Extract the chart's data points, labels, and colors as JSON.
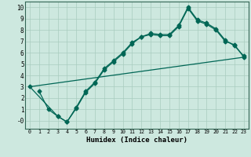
{
  "xlabel": "Humidex (Indice chaleur)",
  "bg_color": "#cde8df",
  "grid_color": "#a8ccbf",
  "line_color": "#006655",
  "xlim": [
    -0.5,
    23.5
  ],
  "ylim": [
    -0.7,
    10.5
  ],
  "xticks": [
    0,
    1,
    2,
    3,
    4,
    5,
    6,
    7,
    8,
    9,
    10,
    11,
    12,
    13,
    14,
    15,
    16,
    17,
    18,
    19,
    20,
    21,
    22,
    23
  ],
  "yticks": [
    0,
    1,
    2,
    3,
    4,
    5,
    6,
    7,
    8,
    9,
    10
  ],
  "ytick_labels": [
    "-0",
    "1",
    "2",
    "3",
    "4",
    "5",
    "6",
    "7",
    "8",
    "9",
    "10"
  ],
  "series1_x": [
    1,
    2,
    3,
    4,
    5,
    6,
    7,
    8,
    9,
    10,
    11,
    12,
    13,
    14,
    15,
    16,
    17,
    18,
    19,
    20,
    21,
    22,
    23
  ],
  "series1_y": [
    2.6,
    1.0,
    0.4,
    -0.1,
    1.1,
    2.5,
    3.3,
    4.5,
    5.2,
    5.9,
    6.8,
    7.4,
    7.6,
    7.5,
    7.5,
    8.3,
    9.9,
    8.8,
    8.5,
    8.0,
    7.0,
    6.7,
    5.6
  ],
  "series2_x": [
    0,
    3,
    4,
    5,
    6,
    7,
    8,
    9,
    10,
    11,
    12,
    13,
    14,
    15,
    16,
    17,
    18,
    19,
    20,
    21,
    22,
    23
  ],
  "series2_y": [
    3.0,
    0.4,
    -0.1,
    1.2,
    2.6,
    3.4,
    4.6,
    5.3,
    6.0,
    6.9,
    7.4,
    7.7,
    7.6,
    7.6,
    8.4,
    10.0,
    8.9,
    8.6,
    8.1,
    7.1,
    6.6,
    5.7
  ],
  "series3_x": [
    0,
    23
  ],
  "series3_y": [
    3.0,
    5.6
  ],
  "markersize": 2.5,
  "linewidth": 0.9
}
